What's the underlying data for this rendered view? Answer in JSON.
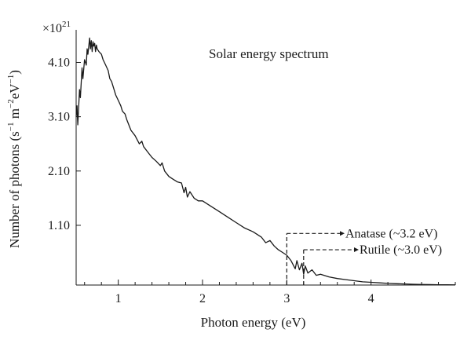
{
  "chart_data": {
    "type": "line",
    "title": "Solar energy spectrum",
    "xlabel": "Photon energy (eV)",
    "ylabel_parts": [
      "Number of photons (s",
      "−1",
      " m",
      "−2",
      "eV",
      "−1",
      ")"
    ],
    "y_multiplier": {
      "base": "×10",
      "exponent": "21"
    },
    "xlim": [
      0.5,
      5.0
    ],
    "ylim": [
      0.0,
      4.7
    ],
    "x_ticks": [
      1,
      2,
      3,
      4
    ],
    "x_tick_labels": [
      "1",
      "2",
      "3",
      "4"
    ],
    "x_minor_step": 0.2,
    "y_ticks": [
      1.1,
      2.1,
      3.1,
      4.1
    ],
    "y_tick_labels": [
      "1.10",
      "2.10",
      "3.10",
      "4.10"
    ],
    "grid": false,
    "series": [
      {
        "x": [
          0.5,
          0.51,
          0.52,
          0.54,
          0.55,
          0.57,
          0.58,
          0.6,
          0.62,
          0.63,
          0.64,
          0.65,
          0.66,
          0.67,
          0.68,
          0.69,
          0.7,
          0.71,
          0.72,
          0.73,
          0.74,
          0.75,
          0.77,
          0.8,
          0.82,
          0.85,
          0.88,
          0.9,
          0.92,
          0.95,
          0.97,
          1.0,
          1.03,
          1.05,
          1.08,
          1.1,
          1.15,
          1.2,
          1.25,
          1.28,
          1.3,
          1.35,
          1.4,
          1.45,
          1.5,
          1.52,
          1.55,
          1.6,
          1.65,
          1.7,
          1.75,
          1.78,
          1.8,
          1.82,
          1.85,
          1.9,
          1.95,
          2.0,
          2.1,
          2.2,
          2.3,
          2.4,
          2.5,
          2.6,
          2.7,
          2.75,
          2.8,
          2.85,
          2.9,
          2.95,
          3.0,
          3.05,
          3.1,
          3.12,
          3.15,
          3.18,
          3.2,
          3.22,
          3.25,
          3.3,
          3.35,
          3.4,
          3.5,
          3.6,
          3.7,
          3.8,
          3.9,
          4.0,
          4.1,
          4.2,
          4.3,
          4.4,
          4.5,
          4.6,
          4.7,
          4.8,
          4.9,
          5.0
        ],
        "y": [
          3.1,
          3.3,
          2.95,
          3.6,
          3.45,
          4.0,
          3.8,
          4.15,
          4.05,
          4.35,
          4.25,
          4.4,
          4.55,
          4.35,
          4.5,
          4.3,
          4.48,
          4.4,
          4.45,
          4.3,
          4.42,
          4.35,
          4.3,
          4.25,
          4.15,
          4.05,
          3.95,
          3.8,
          3.75,
          3.6,
          3.5,
          3.4,
          3.3,
          3.2,
          3.15,
          3.05,
          2.85,
          2.75,
          2.6,
          2.65,
          2.55,
          2.45,
          2.35,
          2.28,
          2.2,
          2.25,
          2.1,
          2.0,
          1.95,
          1.9,
          1.88,
          1.7,
          1.8,
          1.62,
          1.72,
          1.6,
          1.55,
          1.55,
          1.45,
          1.35,
          1.25,
          1.15,
          1.05,
          0.98,
          0.88,
          0.78,
          0.82,
          0.72,
          0.65,
          0.6,
          0.55,
          0.45,
          0.3,
          0.45,
          0.28,
          0.4,
          0.2,
          0.35,
          0.22,
          0.28,
          0.18,
          0.2,
          0.15,
          0.12,
          0.1,
          0.08,
          0.06,
          0.05,
          0.04,
          0.03,
          0.025,
          0.02,
          0.015,
          0.01,
          0.008,
          0.006,
          0.004,
          0.003
        ]
      }
    ],
    "annotations": [
      {
        "label": "Anatase (~3.2 eV)",
        "x": 3.0,
        "y": 0.95
      },
      {
        "label": "Rutile (~3.0 eV)",
        "x": 3.2,
        "y": 0.65
      }
    ]
  }
}
